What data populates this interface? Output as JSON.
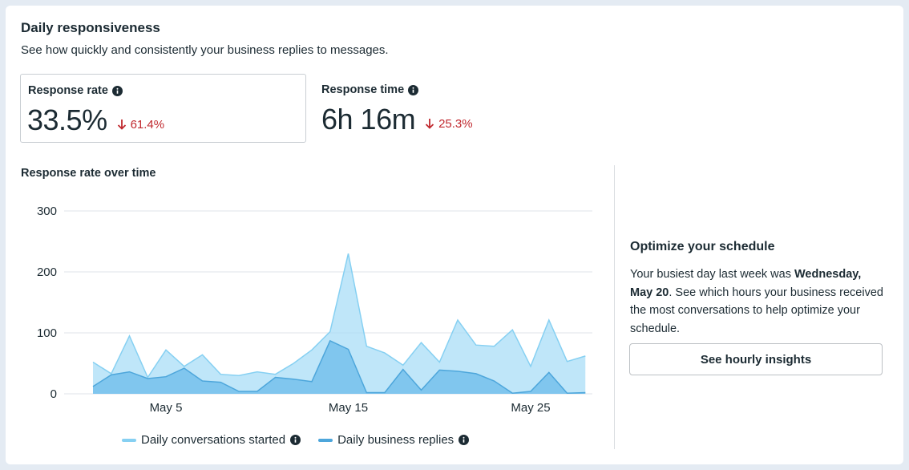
{
  "header": {
    "title": "Daily responsiveness",
    "subtitle": "See how quickly and consistently your business replies to messages."
  },
  "metrics": [
    {
      "label": "Response rate",
      "value": "33.5%",
      "change": "61.4%"
    },
    {
      "label": "Response time",
      "value": "6h 16m",
      "change": "25.3%"
    }
  ],
  "colors": {
    "conversations": "#a9def7",
    "conversations_line": "#86d0f2",
    "replies": "#74c0ec",
    "replies_line": "#4da6db",
    "negative": "#c0282e"
  },
  "chart_data": {
    "type": "area",
    "title": "Response rate over time",
    "x_tick_labels": [
      "May 5",
      "May 15",
      "May 25"
    ],
    "x_tick_days": [
      5,
      15,
      25
    ],
    "x": [
      1,
      2,
      3,
      4,
      5,
      6,
      7,
      8,
      9,
      10,
      11,
      12,
      13,
      14,
      15,
      16,
      17,
      18,
      19,
      20,
      21,
      22,
      23,
      24,
      25,
      26,
      27,
      28
    ],
    "ylim": [
      0,
      300
    ],
    "y_ticks": [
      0,
      100,
      200,
      300
    ],
    "grid": true,
    "legend_position": "bottom",
    "series": [
      {
        "name": "Daily conversations started",
        "values": [
          52,
          33,
          95,
          27,
          72,
          45,
          64,
          32,
          30,
          36,
          32,
          50,
          72,
          102,
          230,
          78,
          67,
          47,
          84,
          52,
          121,
          80,
          78,
          105,
          45,
          121,
          53,
          62
        ]
      },
      {
        "name": "Daily business replies",
        "values": [
          12,
          31,
          36,
          25,
          28,
          42,
          21,
          19,
          4,
          4,
          27,
          24,
          20,
          87,
          73,
          2,
          2,
          40,
          6,
          39,
          37,
          33,
          21,
          1,
          4,
          35,
          1,
          2
        ]
      }
    ]
  },
  "insights": {
    "title": "Optimize your schedule",
    "text_before": "Your busiest day last week was ",
    "highlight": "Wednesday, May 20",
    "text_after": ". See which hours your business received the most conversations to help optimize your schedule.",
    "button_label": "See hourly insights"
  }
}
